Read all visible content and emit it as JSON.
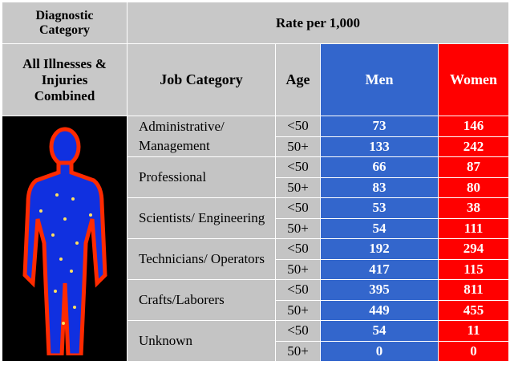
{
  "header": {
    "diagnostic_category": "Diagnostic Category",
    "rate": "Rate per 1,000",
    "illness": "All Illnesses & Injuries Combined",
    "job_category": "Job Category",
    "age": "Age",
    "men": "Men",
    "women": "Women"
  },
  "groups": [
    {
      "job": "Administrative/ Management",
      "rows": [
        {
          "age": "<50",
          "men": 73,
          "women": 146
        },
        {
          "age": "50+",
          "men": 133,
          "women": 242
        }
      ]
    },
    {
      "job": "Professional",
      "rows": [
        {
          "age": "<50",
          "men": 66,
          "women": 87
        },
        {
          "age": "50+",
          "men": 83,
          "women": 80
        }
      ]
    },
    {
      "job": "Scientists/ Engineering",
      "rows": [
        {
          "age": "<50",
          "men": 53,
          "women": 38
        },
        {
          "age": "50+",
          "men": 54,
          "women": 111
        }
      ]
    },
    {
      "job": "Technicians/ Operators",
      "rows": [
        {
          "age": "<50",
          "men": 192,
          "women": 294
        },
        {
          "age": "50+",
          "men": 417,
          "women": 115
        }
      ]
    },
    {
      "job": "Crafts/Laborers",
      "rows": [
        {
          "age": "<50",
          "men": 395,
          "women": 811
        },
        {
          "age": "50+",
          "men": 449,
          "women": 455
        }
      ]
    },
    {
      "job": "Unknown",
      "rows": [
        {
          "age": "<50",
          "men": 54,
          "women": 11
        },
        {
          "age": "50+",
          "men": 0,
          "women": 0
        }
      ]
    }
  ]
}
